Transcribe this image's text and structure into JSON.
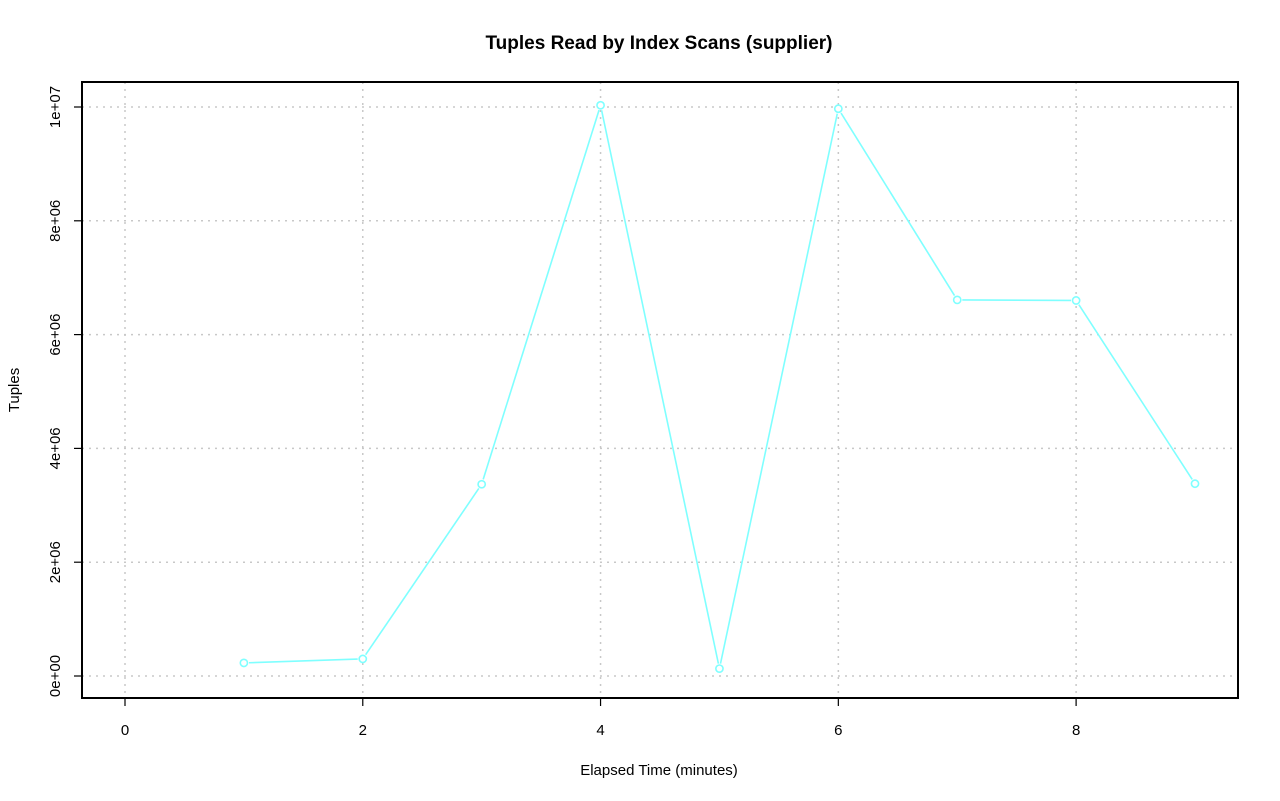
{
  "chart_data": {
    "type": "line",
    "title": "Tuples Read by Index Scans (supplier)",
    "xlabel": "Elapsed Time (minutes)",
    "ylabel": "Tuples",
    "x": [
      1,
      2,
      3,
      4,
      5,
      6,
      7,
      8,
      9
    ],
    "series": [
      {
        "values": [
          230000,
          300000,
          3370000,
          10030000,
          130000,
          9970000,
          6610000,
          6600000,
          3380000
        ],
        "color": "#7fffff"
      }
    ],
    "xlim": [
      0,
      9
    ],
    "ylim": [
      0,
      10000000
    ],
    "x_ticks": [
      0,
      2,
      4,
      6,
      8
    ],
    "x_tick_labels": [
      "0",
      "2",
      "4",
      "6",
      "8"
    ],
    "y_ticks": [
      0,
      2000000,
      4000000,
      6000000,
      8000000,
      10000000
    ],
    "y_tick_labels": [
      "0e+00",
      "2e+06",
      "4e+06",
      "6e+06",
      "8e+06",
      "1e+07"
    ],
    "grid": true,
    "marker": "open-circle"
  }
}
